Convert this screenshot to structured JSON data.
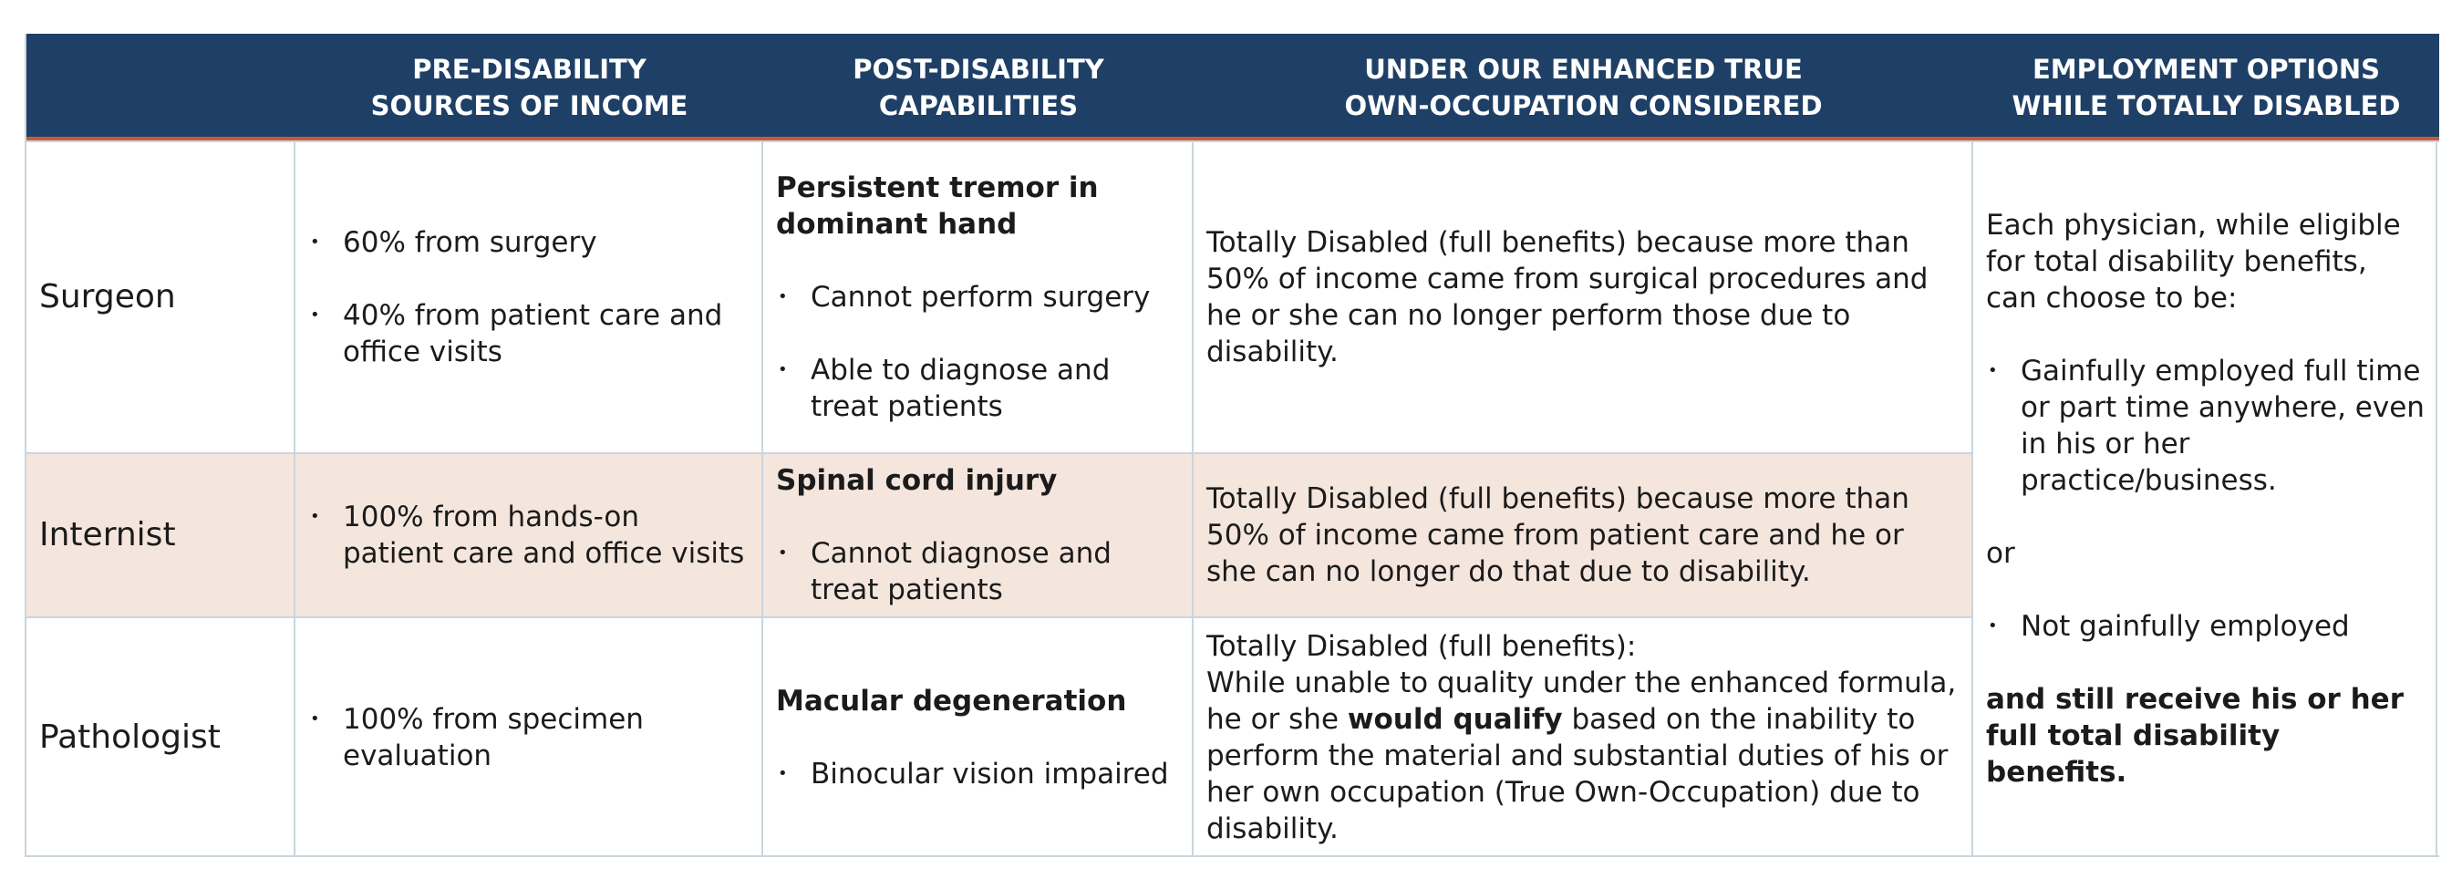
{
  "headers": [
    {
      "line1": "",
      "line2": ""
    },
    {
      "line1": "PRE-DISABILITY",
      "line2": "SOURCES OF INCOME"
    },
    {
      "line1": "POST-DISABILITY",
      "line2": "CAPABILITIES"
    },
    {
      "line1": "UNDER OUR ENHANCED TRUE",
      "line2": "OWN-OCCUPATION CONSIDERED"
    },
    {
      "line1": "EMPLOYMENT OPTIONS",
      "line2": "WHILE TOTALLY DISABLED"
    }
  ],
  "rows": [
    {
      "label": "Surgeon",
      "income": [
        "60% from surgery",
        "40% from patient care and office visits"
      ],
      "capability_title": "Persistent tremor in dominant hand",
      "capabilities": [
        "Cannot perform surgery",
        "Able to diagnose and treat patients"
      ],
      "considered": "Totally Disabled (full benefits) because more than 50% of income came from surgical procedures and he or she can no longer perform those due to disability."
    },
    {
      "label": "Internist",
      "income": [
        "100% from hands-on patient care and office visits"
      ],
      "capability_title": "Spinal cord injury",
      "capabilities": [
        "Cannot diagnose and treat patients"
      ],
      "considered": "Totally Disabled (full benefits) because more than 50% of income came from patient care and he or she can no longer do that due to disability."
    },
    {
      "label": "Pathologist",
      "income": [
        "100% from specimen evaluation"
      ],
      "capability_title": "Macular degeneration",
      "capabilities": [
        "Binocular vision impaired"
      ],
      "considered_line1": "Totally Disabled (full benefits):",
      "considered_pre": "While unable to quality under the enhanced formula, he or she ",
      "considered_bold": "would qualify",
      "considered_post": " based on the inability to perform the material and substantial duties of his or her own occupation (True Own-Occupation) due to disability."
    }
  ],
  "employment": {
    "intro": "Each physician, while eligible for total disability benefits, can choose to be:",
    "option1": "Gainfully employed full time or part time anywhere, even in his or her practice/business.",
    "or": "or",
    "option2": "Not gainfully employed",
    "closing": "and still receive his or her full total disability benefits."
  },
  "colors": {
    "header_bg": "#1f4066",
    "header_rule": "#c8593a",
    "row_shade": "#f4e6dd",
    "grid_line": "#c9d6dc"
  }
}
